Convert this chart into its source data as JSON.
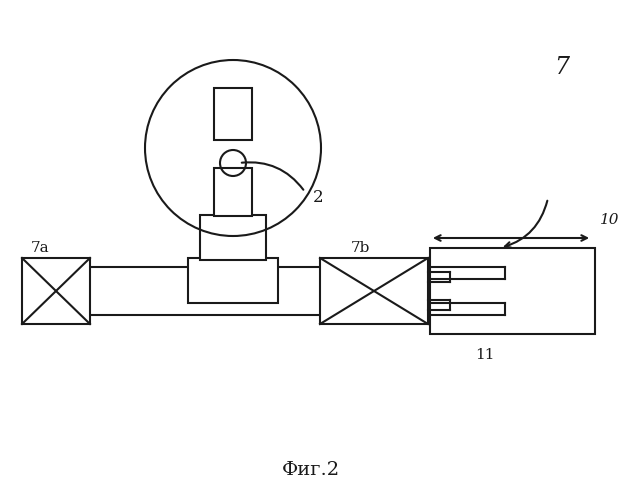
{
  "title": "Фиг.2",
  "bg_color": "#ffffff",
  "line_color": "#1a1a1a",
  "lw": 1.5
}
